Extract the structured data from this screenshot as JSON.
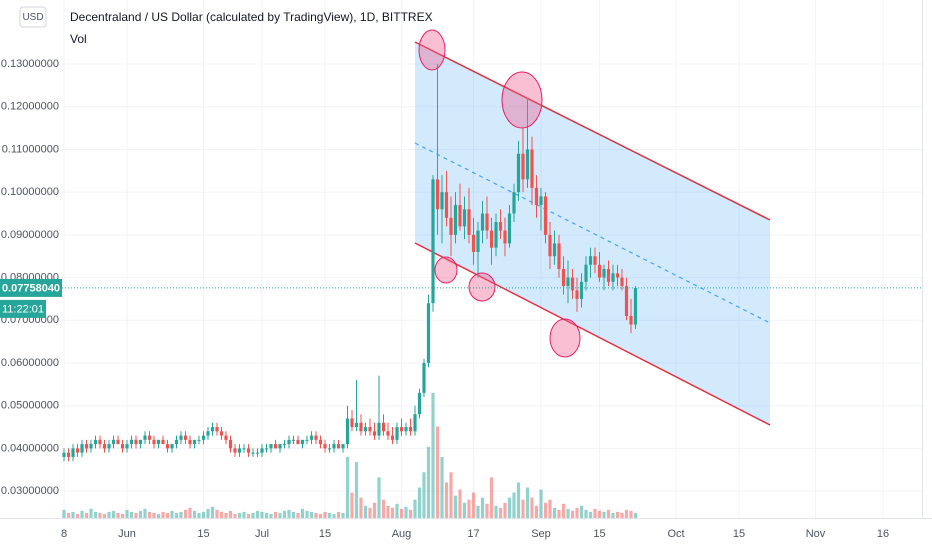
{
  "chart_data": {
    "type": "candlestick",
    "title": "Decentraland / US Dollar (calculated by TradingView), 1D, BITTREX",
    "volume_label": "Vol",
    "currency": "USD",
    "countdown": "11:22:01",
    "last_price": {
      "value": 0.0775804,
      "label": "0.07758040"
    },
    "up_color": "#26a69a",
    "down_color": "#ef5350",
    "grid": true,
    "ylim": [
      0.0237,
      0.145
    ],
    "yticks": [
      {
        "value": 0.03,
        "label": "0.03000000"
      },
      {
        "value": 0.04,
        "label": "0.04000000"
      },
      {
        "value": 0.05,
        "label": "0.05000000"
      },
      {
        "value": 0.06,
        "label": "0.06000000"
      },
      {
        "value": 0.07,
        "label": "0.07000000"
      },
      {
        "value": 0.08,
        "label": "0.08000000"
      },
      {
        "value": 0.09,
        "label": "0.09000000"
      },
      {
        "value": 0.1,
        "label": "0.10000000"
      },
      {
        "value": 0.11,
        "label": "0.11000000"
      },
      {
        "value": 0.12,
        "label": "0.12000000"
      },
      {
        "value": 0.13,
        "label": "0.13000000"
      }
    ],
    "categories": [
      "8",
      null,
      null,
      null,
      null,
      null,
      null,
      null,
      null,
      null,
      null,
      null,
      null,
      null,
      "Jun",
      null,
      null,
      null,
      null,
      null,
      null,
      null,
      null,
      null,
      null,
      null,
      null,
      null,
      null,
      null,
      null,
      "15",
      null,
      null,
      null,
      null,
      null,
      null,
      null,
      null,
      null,
      null,
      null,
      null,
      "Jul",
      null,
      null,
      null,
      null,
      null,
      null,
      null,
      null,
      null,
      null,
      null,
      null,
      null,
      "15",
      null,
      null,
      null,
      null,
      null,
      null,
      null,
      null,
      null,
      null,
      null,
      null,
      null,
      null,
      null,
      null,
      "Aug",
      null,
      null,
      null,
      null,
      null,
      null,
      null,
      null,
      null,
      null,
      null,
      null,
      null,
      null,
      null,
      "17",
      null,
      null,
      null,
      null,
      null,
      null,
      null,
      null,
      null,
      null,
      null,
      null,
      null,
      null,
      "Sep",
      null,
      null,
      null,
      null,
      null,
      null,
      null,
      null,
      null,
      null,
      null,
      null,
      "15",
      null,
      null,
      null,
      null,
      null,
      null,
      null,
      null,
      null,
      null,
      null,
      null,
      null,
      null,
      null,
      null,
      "Oct",
      null,
      null,
      null,
      null,
      null,
      null,
      null,
      null,
      null,
      null,
      null,
      null,
      null,
      "15",
      null,
      null,
      null,
      null,
      null,
      null,
      null,
      null,
      null,
      null,
      null,
      null,
      null,
      null,
      null,
      null,
      "Nov",
      null,
      null,
      null,
      null,
      null,
      null,
      null,
      null,
      null,
      null,
      null,
      null,
      null,
      null,
      "16",
      null,
      null,
      null
    ],
    "candles": [
      [
        0.038,
        0.04,
        0.037,
        0.039
      ],
      [
        0.039,
        0.04,
        0.037,
        0.038
      ],
      [
        0.038,
        0.041,
        0.037,
        0.04
      ],
      [
        0.04,
        0.041,
        0.038,
        0.039
      ],
      [
        0.039,
        0.042,
        0.038,
        0.041
      ],
      [
        0.041,
        0.042,
        0.039,
        0.04
      ],
      [
        0.04,
        0.042,
        0.039,
        0.041
      ],
      [
        0.041,
        0.043,
        0.04,
        0.042
      ],
      [
        0.042,
        0.043,
        0.04,
        0.041
      ],
      [
        0.041,
        0.042,
        0.039,
        0.04
      ],
      [
        0.04,
        0.042,
        0.039,
        0.041
      ],
      [
        0.041,
        0.043,
        0.04,
        0.042
      ],
      [
        0.042,
        0.043,
        0.041,
        0.041
      ],
      [
        0.041,
        0.042,
        0.039,
        0.04
      ],
      [
        0.04,
        0.042,
        0.039,
        0.041
      ],
      [
        0.041,
        0.043,
        0.04,
        0.042
      ],
      [
        0.042,
        0.043,
        0.04,
        0.041
      ],
      [
        0.041,
        0.042,
        0.04,
        0.042
      ],
      [
        0.042,
        0.044,
        0.041,
        0.043
      ],
      [
        0.043,
        0.044,
        0.041,
        0.042
      ],
      [
        0.042,
        0.043,
        0.04,
        0.041
      ],
      [
        0.041,
        0.042,
        0.04,
        0.042
      ],
      [
        0.042,
        0.043,
        0.041,
        0.041
      ],
      [
        0.041,
        0.042,
        0.039,
        0.04
      ],
      [
        0.04,
        0.041,
        0.039,
        0.041
      ],
      [
        0.041,
        0.043,
        0.04,
        0.042
      ],
      [
        0.042,
        0.044,
        0.041,
        0.043
      ],
      [
        0.043,
        0.044,
        0.041,
        0.042
      ],
      [
        0.042,
        0.043,
        0.04,
        0.041
      ],
      [
        0.041,
        0.042,
        0.04,
        0.042
      ],
      [
        0.042,
        0.043,
        0.041,
        0.042
      ],
      [
        0.042,
        0.044,
        0.041,
        0.043
      ],
      [
        0.043,
        0.045,
        0.042,
        0.044
      ],
      [
        0.044,
        0.046,
        0.043,
        0.045
      ],
      [
        0.045,
        0.046,
        0.043,
        0.044
      ],
      [
        0.044,
        0.045,
        0.042,
        0.043
      ],
      [
        0.043,
        0.044,
        0.041,
        0.042
      ],
      [
        0.042,
        0.043,
        0.039,
        0.04
      ],
      [
        0.04,
        0.041,
        0.038,
        0.039
      ],
      [
        0.039,
        0.041,
        0.038,
        0.04
      ],
      [
        0.04,
        0.041,
        0.039,
        0.04
      ],
      [
        0.04,
        0.041,
        0.038,
        0.039
      ],
      [
        0.039,
        0.04,
        0.038,
        0.039
      ],
      [
        0.039,
        0.04,
        0.038,
        0.039
      ],
      [
        0.039,
        0.041,
        0.038,
        0.04
      ],
      [
        0.04,
        0.041,
        0.039,
        0.04
      ],
      [
        0.04,
        0.041,
        0.039,
        0.041
      ],
      [
        0.041,
        0.042,
        0.04,
        0.04
      ],
      [
        0.04,
        0.041,
        0.039,
        0.041
      ],
      [
        0.041,
        0.042,
        0.04,
        0.041
      ],
      [
        0.041,
        0.043,
        0.04,
        0.042
      ],
      [
        0.042,
        0.043,
        0.041,
        0.042
      ],
      [
        0.042,
        0.043,
        0.041,
        0.041
      ],
      [
        0.041,
        0.042,
        0.04,
        0.042
      ],
      [
        0.042,
        0.043,
        0.041,
        0.042
      ],
      [
        0.042,
        0.044,
        0.041,
        0.043
      ],
      [
        0.043,
        0.044,
        0.041,
        0.042
      ],
      [
        0.042,
        0.043,
        0.04,
        0.041
      ],
      [
        0.041,
        0.042,
        0.039,
        0.04
      ],
      [
        0.04,
        0.041,
        0.039,
        0.04
      ],
      [
        0.04,
        0.042,
        0.039,
        0.041
      ],
      [
        0.041,
        0.042,
        0.04,
        0.04
      ],
      [
        0.04,
        0.041,
        0.039,
        0.041
      ],
      [
        0.041,
        0.05,
        0.04,
        0.047
      ],
      [
        0.047,
        0.049,
        0.044,
        0.045
      ],
      [
        0.045,
        0.056,
        0.044,
        0.046
      ],
      [
        0.046,
        0.048,
        0.043,
        0.044
      ],
      [
        0.044,
        0.046,
        0.043,
        0.045
      ],
      [
        0.045,
        0.047,
        0.043,
        0.044
      ],
      [
        0.044,
        0.046,
        0.042,
        0.043
      ],
      [
        0.043,
        0.057,
        0.042,
        0.046
      ],
      [
        0.046,
        0.048,
        0.043,
        0.044
      ],
      [
        0.044,
        0.046,
        0.042,
        0.043
      ],
      [
        0.043,
        0.045,
        0.041,
        0.042
      ],
      [
        0.042,
        0.046,
        0.041,
        0.045
      ],
      [
        0.045,
        0.047,
        0.043,
        0.044
      ],
      [
        0.044,
        0.046,
        0.043,
        0.045
      ],
      [
        0.045,
        0.047,
        0.043,
        0.044
      ],
      [
        0.044,
        0.05,
        0.043,
        0.048
      ],
      [
        0.048,
        0.054,
        0.047,
        0.053
      ],
      [
        0.053,
        0.061,
        0.052,
        0.06
      ],
      [
        0.06,
        0.076,
        0.059,
        0.074
      ],
      [
        0.074,
        0.104,
        0.072,
        0.103
      ],
      [
        0.103,
        0.13,
        0.09,
        0.096
      ],
      [
        0.096,
        0.104,
        0.088,
        0.1
      ],
      [
        0.1,
        0.105,
        0.092,
        0.094
      ],
      [
        0.094,
        0.099,
        0.085,
        0.09
      ],
      [
        0.09,
        0.1,
        0.088,
        0.097
      ],
      [
        0.097,
        0.102,
        0.091,
        0.092
      ],
      [
        0.092,
        0.099,
        0.089,
        0.096
      ],
      [
        0.096,
        0.101,
        0.088,
        0.09
      ],
      [
        0.09,
        0.094,
        0.083,
        0.086
      ],
      [
        0.086,
        0.093,
        0.08,
        0.091
      ],
      [
        0.091,
        0.098,
        0.088,
        0.095
      ],
      [
        0.095,
        0.099,
        0.089,
        0.091
      ],
      [
        0.091,
        0.094,
        0.083,
        0.087
      ],
      [
        0.087,
        0.095,
        0.085,
        0.093
      ],
      [
        0.093,
        0.096,
        0.089,
        0.091
      ],
      [
        0.091,
        0.094,
        0.085,
        0.088
      ],
      [
        0.088,
        0.097,
        0.087,
        0.095
      ],
      [
        0.095,
        0.102,
        0.093,
        0.1
      ],
      [
        0.1,
        0.112,
        0.098,
        0.109
      ],
      [
        0.109,
        0.115,
        0.1,
        0.103
      ],
      [
        0.103,
        0.122,
        0.101,
        0.11
      ],
      [
        0.11,
        0.113,
        0.097,
        0.101
      ],
      [
        0.101,
        0.104,
        0.094,
        0.097
      ],
      [
        0.097,
        0.101,
        0.091,
        0.099
      ],
      [
        0.099,
        0.1,
        0.088,
        0.09
      ],
      [
        0.09,
        0.093,
        0.082,
        0.085
      ],
      [
        0.085,
        0.091,
        0.083,
        0.088
      ],
      [
        0.088,
        0.09,
        0.08,
        0.082
      ],
      [
        0.082,
        0.085,
        0.076,
        0.078
      ],
      [
        0.078,
        0.084,
        0.074,
        0.08
      ],
      [
        0.08,
        0.082,
        0.075,
        0.077
      ],
      [
        0.077,
        0.08,
        0.072,
        0.075
      ],
      [
        0.075,
        0.081,
        0.073,
        0.079
      ],
      [
        0.079,
        0.085,
        0.077,
        0.083
      ],
      [
        0.083,
        0.087,
        0.08,
        0.085
      ],
      [
        0.085,
        0.087,
        0.081,
        0.083
      ],
      [
        0.083,
        0.086,
        0.079,
        0.08
      ],
      [
        0.08,
        0.083,
        0.077,
        0.082
      ],
      [
        0.082,
        0.084,
        0.078,
        0.079
      ],
      [
        0.079,
        0.083,
        0.077,
        0.081
      ],
      [
        0.081,
        0.083,
        0.078,
        0.08
      ],
      [
        0.08,
        0.082,
        0.077,
        0.078
      ],
      [
        0.078,
        0.08,
        0.07,
        0.071
      ],
      [
        0.071,
        0.075,
        0.067,
        0.069
      ],
      [
        0.069,
        0.078,
        0.068,
        0.0775804
      ],
      null,
      null,
      null,
      null,
      null,
      null,
      null,
      null,
      null,
      null,
      null,
      null,
      null,
      null,
      null,
      null,
      null,
      null,
      null,
      null,
      null,
      null,
      null,
      null,
      null,
      null,
      null,
      null,
      null,
      null,
      null,
      null,
      null,
      null,
      null,
      null,
      null,
      null,
      null,
      null,
      null,
      null,
      null,
      null,
      null,
      null,
      null,
      null,
      null,
      null,
      null,
      null,
      null,
      null,
      null,
      null,
      null,
      null
    ],
    "volume": [
      8,
      5,
      6,
      4,
      7,
      5,
      9,
      6,
      5,
      4,
      6,
      7,
      5,
      4,
      8,
      6,
      5,
      7,
      9,
      6,
      5,
      4,
      6,
      5,
      7,
      5,
      6,
      8,
      10,
      7,
      5,
      6,
      9,
      11,
      8,
      6,
      5,
      7,
      4,
      5,
      6,
      4,
      5,
      7,
      6,
      5,
      4,
      6,
      5,
      7,
      8,
      6,
      5,
      9,
      7,
      6,
      5,
      4,
      6,
      5,
      4,
      6,
      5,
      60,
      25,
      55,
      20,
      12,
      10,
      15,
      40,
      18,
      12,
      10,
      14,
      9,
      11,
      8,
      18,
      30,
      45,
      70,
      123,
      90,
      60,
      35,
      45,
      22,
      28,
      15,
      18,
      25,
      12,
      20,
      14,
      40,
      12,
      10,
      15,
      20,
      25,
      35,
      18,
      30,
      20,
      12,
      28,
      15,
      18,
      10,
      8,
      14,
      9,
      7,
      10,
      12,
      8,
      6,
      9,
      7,
      6,
      8,
      5,
      6,
      5,
      8,
      7,
      5,
      null,
      null,
      null,
      null,
      null,
      null,
      null,
      null,
      null,
      null,
      null,
      null,
      null,
      null,
      null,
      null,
      null,
      null,
      null,
      null,
      null,
      null,
      null,
      null,
      null,
      null,
      null,
      null,
      null,
      null,
      null,
      null,
      null,
      null,
      null,
      null,
      null,
      null,
      null,
      null,
      null,
      null,
      null,
      null,
      null,
      null,
      null,
      null,
      null,
      null,
      null,
      null,
      null,
      null,
      null,
      null,
      null,
      null
    ]
  }
}
